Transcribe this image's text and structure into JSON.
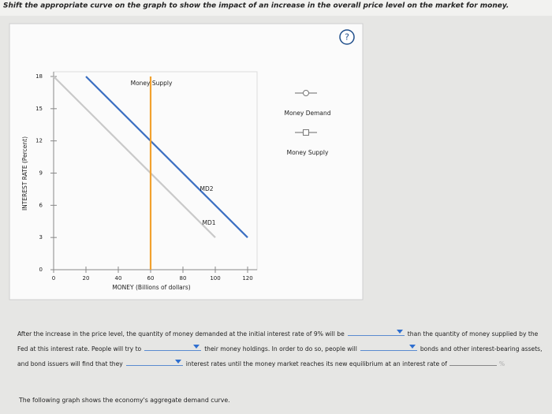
{
  "instruction": "Shift the appropriate curve on the graph to show the impact of an increase in the overall price level on the market for money.",
  "help": "?",
  "chart_data": {
    "type": "line",
    "xlabel": "MONEY (Billions of dollars)",
    "ylabel": "INTEREST RATE (Percent)",
    "xlim": [
      0,
      120
    ],
    "xticks": [
      0,
      20,
      40,
      60,
      80,
      100,
      120
    ],
    "ylim": [
      0,
      18
    ],
    "yticks": [
      0,
      3,
      6,
      9,
      12,
      15,
      18
    ],
    "grid": false,
    "series": [
      {
        "name": "MD1",
        "color": "#c9c9c9",
        "x": [
          0,
          100
        ],
        "values": [
          18,
          3
        ]
      },
      {
        "name": "MD2",
        "color": "#3b6fc2",
        "x": [
          20,
          120
        ],
        "values": [
          18,
          3
        ]
      },
      {
        "name": "Money Supply",
        "color": "#f2a12e",
        "x": [
          60,
          60
        ],
        "values": [
          0,
          18
        ]
      }
    ],
    "tools": [
      "Money Demand",
      "Money Supply"
    ]
  },
  "question": {
    "segments": [
      "After the increase in the price level, the quantity of money demanded at the initial interest rate of 9% will be",
      "than the quantity of money supplied by the Fed at this interest rate. People will try to",
      "their money holdings. In order to do so, people will",
      "bonds and other interest-bearing assets, and bond issuers will find that they",
      "interest rates until the money market reaches its new equilibrium at an interest rate of"
    ],
    "unit": "%"
  },
  "footer": "The following graph shows the economy's aggregate demand curve."
}
